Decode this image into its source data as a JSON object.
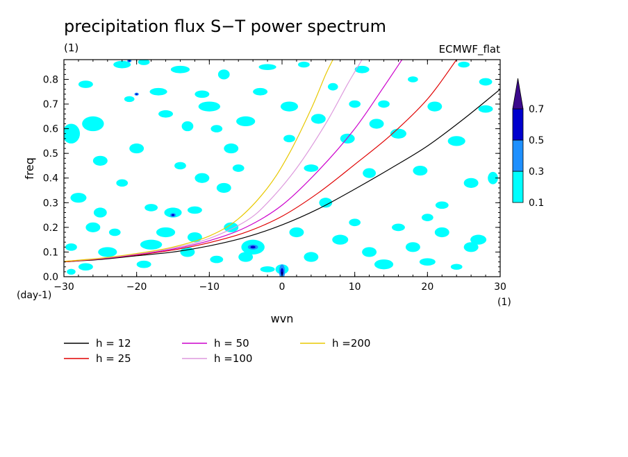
{
  "chart_data": {
    "type": "contour",
    "title": "precipitation flux S−T power spectrum",
    "units_left": "(1)",
    "model_label": "ECMWF_flat",
    "xlabel": "wvn",
    "ylabel": "freq",
    "x_unit": "(1)",
    "y_unit": "(day-1)",
    "xlim": [
      -30,
      30
    ],
    "ylim": [
      0,
      0.88
    ],
    "x_ticks": [
      -30,
      -20,
      -10,
      0,
      10,
      20,
      30
    ],
    "y_ticks": [
      0.0,
      0.1,
      0.2,
      0.3,
      0.4,
      0.5,
      0.6,
      0.7,
      0.8
    ],
    "colorbar": {
      "levels": [
        0.1,
        0.3,
        0.5,
        0.7
      ],
      "colors": [
        "#00ffff",
        "#1e90ff",
        "#0000cd",
        "#3c0a8c"
      ]
    },
    "dispersion_curves": [
      {
        "name": "h = 12",
        "color": "#000000",
        "points": [
          [
            -30,
            0.06
          ],
          [
            -25,
            0.07
          ],
          [
            -20,
            0.085
          ],
          [
            -15,
            0.1
          ],
          [
            -10,
            0.125
          ],
          [
            -5,
            0.16
          ],
          [
            0,
            0.21
          ],
          [
            5,
            0.275
          ],
          [
            10,
            0.355
          ],
          [
            15,
            0.44
          ],
          [
            20,
            0.53
          ],
          [
            25,
            0.64
          ],
          [
            30,
            0.76
          ]
        ]
      },
      {
        "name": "h = 25",
        "color": "#e00000",
        "points": [
          [
            -30,
            0.06
          ],
          [
            -25,
            0.072
          ],
          [
            -20,
            0.088
          ],
          [
            -15,
            0.108
          ],
          [
            -10,
            0.138
          ],
          [
            -5,
            0.18
          ],
          [
            0,
            0.245
          ],
          [
            5,
            0.34
          ],
          [
            10,
            0.455
          ],
          [
            15,
            0.575
          ],
          [
            20,
            0.72
          ],
          [
            24,
            0.88
          ]
        ]
      },
      {
        "name": "h = 50",
        "color": "#cc00cc",
        "points": [
          [
            -30,
            0.062
          ],
          [
            -25,
            0.073
          ],
          [
            -20,
            0.09
          ],
          [
            -15,
            0.112
          ],
          [
            -10,
            0.146
          ],
          [
            -5,
            0.2
          ],
          [
            0,
            0.29
          ],
          [
            5,
            0.43
          ],
          [
            10,
            0.6
          ],
          [
            14,
            0.77
          ],
          [
            16.5,
            0.88
          ]
        ]
      },
      {
        "name": "h =100",
        "color": "#dd99dd",
        "points": [
          [
            -30,
            0.062
          ],
          [
            -25,
            0.074
          ],
          [
            -20,
            0.092
          ],
          [
            -15,
            0.116
          ],
          [
            -10,
            0.155
          ],
          [
            -5,
            0.225
          ],
          [
            -2,
            0.3
          ],
          [
            2,
            0.44
          ],
          [
            6,
            0.62
          ],
          [
            9,
            0.78
          ],
          [
            11,
            0.88
          ]
        ]
      },
      {
        "name": "h =200",
        "color": "#e8c800",
        "points": [
          [
            -30,
            0.062
          ],
          [
            -25,
            0.075
          ],
          [
            -20,
            0.094
          ],
          [
            -15,
            0.12
          ],
          [
            -10,
            0.165
          ],
          [
            -6,
            0.235
          ],
          [
            -2,
            0.36
          ],
          [
            1,
            0.5
          ],
          [
            4,
            0.68
          ],
          [
            6,
            0.82
          ],
          [
            7,
            0.88
          ]
        ]
      }
    ],
    "contour_blobs": [
      [
        -29,
        0.02,
        0.6,
        0.012
      ],
      [
        -27,
        0.78,
        1,
        0.015
      ],
      [
        -26,
        0.62,
        1.5,
        0.03
      ],
      [
        -25,
        0.47,
        1,
        0.02
      ],
      [
        -22,
        0.86,
        1.2,
        0.015
      ],
      [
        -19,
        0.87,
        0.8,
        0.012
      ],
      [
        -17,
        0.75,
        1.2,
        0.015
      ],
      [
        -16,
        0.66,
        1,
        0.015
      ],
      [
        -14,
        0.84,
        1.3,
        0.015
      ],
      [
        -13,
        0.61,
        0.8,
        0.02
      ],
      [
        -11,
        0.74,
        1,
        0.015
      ],
      [
        -10,
        0.69,
        1.5,
        0.02
      ],
      [
        -8,
        0.82,
        0.8,
        0.02
      ],
      [
        -7,
        0.52,
        1,
        0.02
      ],
      [
        -5,
        0.63,
        1.3,
        0.02
      ],
      [
        -3,
        0.75,
        1,
        0.015
      ],
      [
        -2,
        0.85,
        1.2,
        0.012
      ],
      [
        1,
        0.69,
        1.2,
        0.02
      ],
      [
        3,
        0.86,
        0.8,
        0.012
      ],
      [
        5,
        0.64,
        1,
        0.02
      ],
      [
        7,
        0.77,
        0.7,
        0.015
      ],
      [
        9,
        0.56,
        1,
        0.02
      ],
      [
        11,
        0.84,
        1,
        0.015
      ],
      [
        12,
        0.42,
        0.9,
        0.02
      ],
      [
        14,
        0.7,
        0.8,
        0.015
      ],
      [
        16,
        0.58,
        1.1,
        0.02
      ],
      [
        18,
        0.8,
        0.7,
        0.012
      ],
      [
        19,
        0.43,
        1,
        0.02
      ],
      [
        21,
        0.69,
        1,
        0.02
      ],
      [
        22,
        0.29,
        0.9,
        0.015
      ],
      [
        24,
        0.55,
        1.2,
        0.02
      ],
      [
        25,
        0.86,
        0.8,
        0.012
      ],
      [
        26,
        0.38,
        1,
        0.02
      ],
      [
        27,
        0.15,
        1.1,
        0.02
      ],
      [
        28,
        0.68,
        1,
        0.015
      ],
      [
        29,
        0.4,
        0.7,
        0.025
      ],
      [
        28,
        0.79,
        0.9,
        0.015
      ],
      [
        -28,
        0.32,
        1.1,
        0.02
      ],
      [
        -26,
        0.2,
        1,
        0.02
      ],
      [
        -24,
        0.1,
        1.3,
        0.02
      ],
      [
        -22,
        0.38,
        0.8,
        0.015
      ],
      [
        -20,
        0.52,
        1,
        0.02
      ],
      [
        -18,
        0.28,
        0.9,
        0.015
      ],
      [
        -16,
        0.18,
        1.3,
        0.02
      ],
      [
        -15,
        0.26,
        1.2,
        0.02
      ],
      [
        -14,
        0.45,
        0.8,
        0.015
      ],
      [
        -12,
        0.27,
        1,
        0.015
      ],
      [
        -11,
        0.4,
        1,
        0.02
      ],
      [
        -8,
        0.36,
        1,
        0.02
      ],
      [
        -6,
        0.44,
        0.8,
        0.015
      ],
      [
        -4,
        0.12,
        1.6,
        0.03
      ],
      [
        -5,
        0.08,
        1,
        0.02
      ],
      [
        -2,
        0.03,
        1,
        0.012
      ],
      [
        0,
        0.03,
        0.9,
        0.02
      ],
      [
        2,
        0.18,
        1,
        0.02
      ],
      [
        4,
        0.08,
        1,
        0.02
      ],
      [
        6,
        0.3,
        0.9,
        0.02
      ],
      [
        8,
        0.15,
        1.1,
        0.02
      ],
      [
        10,
        0.22,
        0.8,
        0.015
      ],
      [
        12,
        0.1,
        1,
        0.02
      ],
      [
        14,
        0.05,
        1.3,
        0.02
      ],
      [
        16,
        0.2,
        0.9,
        0.015
      ],
      [
        18,
        0.12,
        1,
        0.02
      ],
      [
        20,
        0.06,
        1.1,
        0.015
      ],
      [
        22,
        0.18,
        1,
        0.02
      ],
      [
        24,
        0.04,
        0.8,
        0.012
      ],
      [
        26,
        0.12,
        1,
        0.02
      ],
      [
        -29,
        0.12,
        0.8,
        0.015
      ],
      [
        -27,
        0.04,
        1,
        0.015
      ],
      [
        -23,
        0.18,
        0.8,
        0.015
      ],
      [
        -19,
        0.05,
        1,
        0.015
      ],
      [
        -13,
        0.1,
        1,
        0.02
      ],
      [
        -9,
        0.07,
        0.9,
        0.015
      ],
      [
        -29,
        0.58,
        1.2,
        0.04
      ],
      [
        -7,
        0.2,
        1,
        0.02
      ],
      [
        13,
        0.62,
        1,
        0.02
      ],
      [
        4,
        0.44,
        1,
        0.015
      ],
      [
        -9,
        0.6,
        0.8,
        0.015
      ],
      [
        20,
        0.24,
        0.8,
        0.015
      ],
      [
        -21,
        0.72,
        0.7,
        0.012
      ],
      [
        10,
        0.7,
        0.8,
        0.015
      ],
      [
        -18,
        0.13,
        1.5,
        0.02
      ],
      [
        -12,
        0.16,
        1,
        0.02
      ],
      [
        -25,
        0.26,
        0.9,
        0.02
      ],
      [
        1,
        0.56,
        0.8,
        0.015
      ]
    ],
    "strong_spots": [
      [
        -4,
        0.12,
        0.7,
        0.01
      ],
      [
        0,
        0.02,
        0.4,
        0.03
      ],
      [
        -15,
        0.25,
        0.4,
        0.008
      ],
      [
        -21,
        0.875,
        0.3,
        0.006
      ],
      [
        -20,
        0.74,
        0.3,
        0.006
      ]
    ],
    "legend_entries": [
      "h = 12",
      "h = 25",
      "h = 50",
      "h =100",
      "h =200"
    ]
  }
}
